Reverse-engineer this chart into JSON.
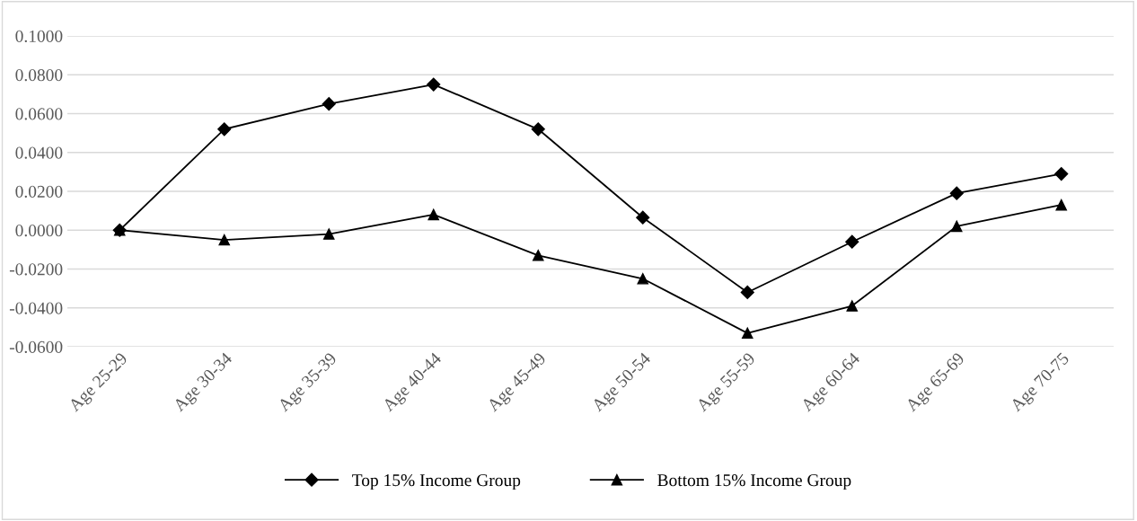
{
  "chart_data": {
    "type": "line",
    "categories": [
      "Age 25-29",
      "Age 30-34",
      "Age 35-39",
      "Age 40-44",
      "Age 45-49",
      "Age 50-54",
      "Age 55-59",
      "Age 60-64",
      "Age 65-69",
      "Age 70-75"
    ],
    "series": [
      {
        "name": "Top 15% Income Group",
        "color": "#000000",
        "marker": "diamond",
        "values": [
          0.0,
          0.052,
          0.065,
          0.075,
          0.052,
          0.0065,
          -0.032,
          -0.006,
          0.019,
          0.029
        ]
      },
      {
        "name": "Bottom 15% Income Group",
        "color": "#000000",
        "marker": "triangle",
        "values": [
          0.0,
          -0.005,
          -0.002,
          0.008,
          -0.013,
          -0.025,
          -0.053,
          -0.039,
          0.002,
          0.013
        ]
      }
    ],
    "ylim": [
      -0.06,
      0.1
    ],
    "yticks": [
      {
        "value": -0.06,
        "label": "-0.0600"
      },
      {
        "value": -0.04,
        "label": "-0.0400"
      },
      {
        "value": -0.02,
        "label": "-0.0200"
      },
      {
        "value": 0,
        "label": "0.0000"
      },
      {
        "value": 0.02,
        "label": "0.0200"
      },
      {
        "value": 0.04,
        "label": "0.0400"
      },
      {
        "value": 0.06,
        "label": "0.0600"
      },
      {
        "value": 0.08,
        "label": "0.0800"
      },
      {
        "value": 0.1,
        "label": "0.1000"
      }
    ],
    "grid": "y",
    "legend": "bottom",
    "line_style": "solid"
  }
}
